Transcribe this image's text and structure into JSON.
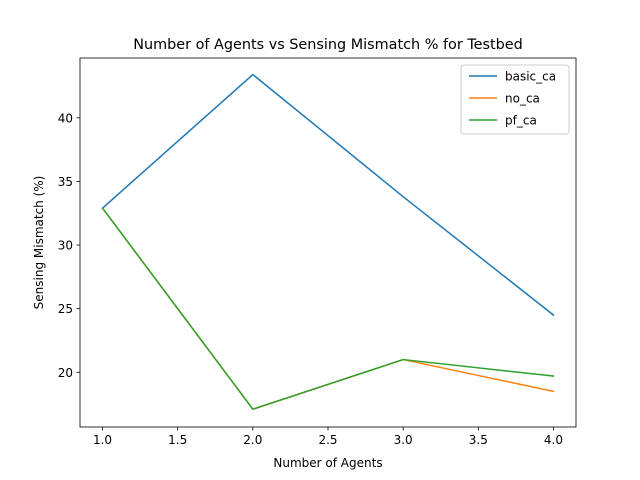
{
  "chart_data": {
    "type": "line",
    "title": "Number of Agents vs Sensing Mismatch % for Testbed",
    "xlabel": "Number of Agents",
    "ylabel": "Sensing Mismatch (%)",
    "xlim": [
      0.85,
      4.15
    ],
    "ylim": [
      15.7,
      44.7
    ],
    "xticks": [
      1.0,
      1.5,
      2.0,
      2.5,
      3.0,
      3.5,
      4.0
    ],
    "xtick_labels": [
      "1.0",
      "1.5",
      "2.0",
      "2.5",
      "3.0",
      "3.5",
      "4.0"
    ],
    "yticks": [
      20,
      25,
      30,
      35,
      40
    ],
    "ytick_labels": [
      "20",
      "25",
      "30",
      "35",
      "40"
    ],
    "grid": false,
    "legend_position": "top-right",
    "x": [
      1,
      2,
      3,
      4
    ],
    "series": [
      {
        "name": "basic_ca",
        "color": "#1f77b4",
        "values": [
          32.9,
          43.4,
          33.8,
          24.5
        ]
      },
      {
        "name": "no_ca",
        "color": "#ff7f0e",
        "values": [
          32.9,
          17.1,
          21.0,
          18.5
        ]
      },
      {
        "name": "pf_ca",
        "color": "#2ca02c",
        "values": [
          32.9,
          17.1,
          21.0,
          19.7
        ]
      }
    ]
  }
}
